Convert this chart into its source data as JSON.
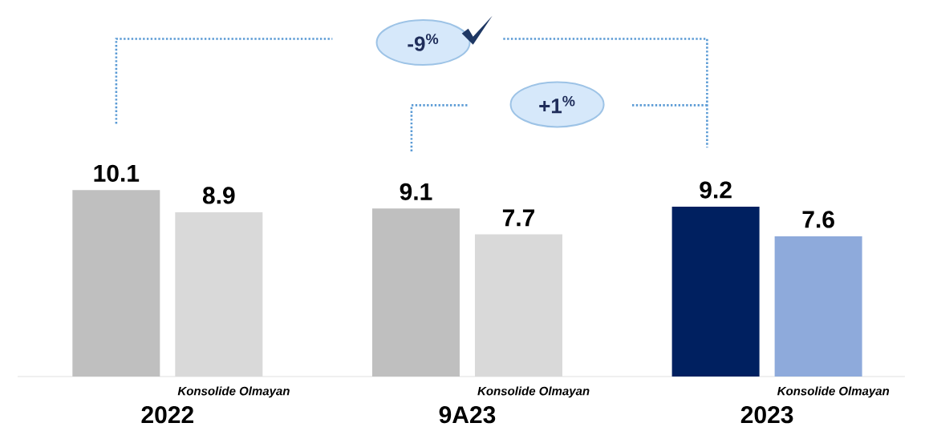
{
  "chart_data": {
    "type": "bar",
    "categories": [
      "2022",
      "9A23",
      "2023"
    ],
    "series": [
      {
        "colors": [
          "#bfbfbf",
          "#bfbfbf",
          "#002060"
        ],
        "values": [
          10.1,
          9.1,
          9.2
        ]
      },
      {
        "name": "Konsolide Olmayan",
        "colors": [
          "#d9d9d9",
          "#d9d9d9",
          "#8eaadb"
        ],
        "values": [
          8.9,
          7.7,
          7.6
        ]
      }
    ],
    "data_labels": true,
    "annotations": [
      "-9$^{%}$",
      "+1$^{%}$"
    ]
  }
}
